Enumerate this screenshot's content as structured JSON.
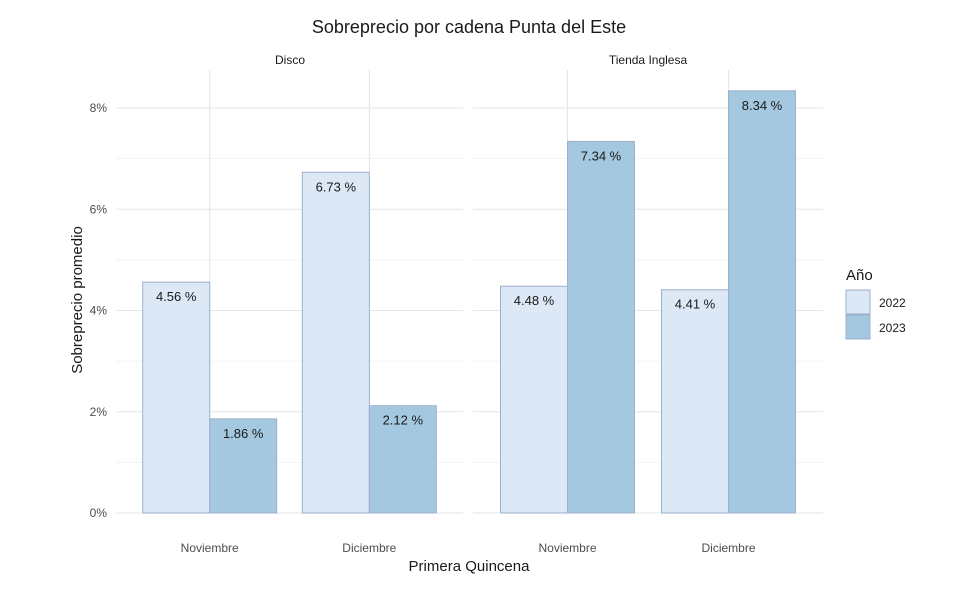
{
  "chart_data": {
    "type": "bar",
    "title": "Sobreprecio por cadena Punta del Este",
    "xlabel": "Primera Quincena",
    "ylabel": "Sobreprecio promedio",
    "ylim": [
      0,
      8.8
    ],
    "yticks": [
      0,
      2,
      4,
      6,
      8
    ],
    "ytick_labels": [
      "0%",
      "2%",
      "4%",
      "6%",
      "8%"
    ],
    "grid": true,
    "legend": {
      "title": "Año",
      "placement": "right",
      "entries": [
        "2022",
        "2023"
      ]
    },
    "colors": {
      "2022": "#dce8f5",
      "2023": "#a3c8e0",
      "bar_border": "#9db0cc"
    },
    "facets": [
      {
        "name": "Disco",
        "categories": [
          "Noviembre",
          "Diciembre"
        ],
        "series": [
          {
            "name": "2022",
            "values": [
              4.56,
              6.73
            ],
            "labels": [
              "4.56 %",
              "6.73 %"
            ]
          },
          {
            "name": "2023",
            "values": [
              1.86,
              2.12
            ],
            "labels": [
              "1.86 %",
              "2.12 %"
            ]
          }
        ]
      },
      {
        "name": "Tienda Inglesa",
        "categories": [
          "Noviembre",
          "Diciembre"
        ],
        "series": [
          {
            "name": "2022",
            "values": [
              4.48,
              4.41
            ],
            "labels": [
              "4.48 %",
              "4.41 %"
            ]
          },
          {
            "name": "2023",
            "values": [
              7.34,
              8.34
            ],
            "labels": [
              "7.34 %",
              "8.34 %"
            ]
          }
        ]
      }
    ]
  }
}
